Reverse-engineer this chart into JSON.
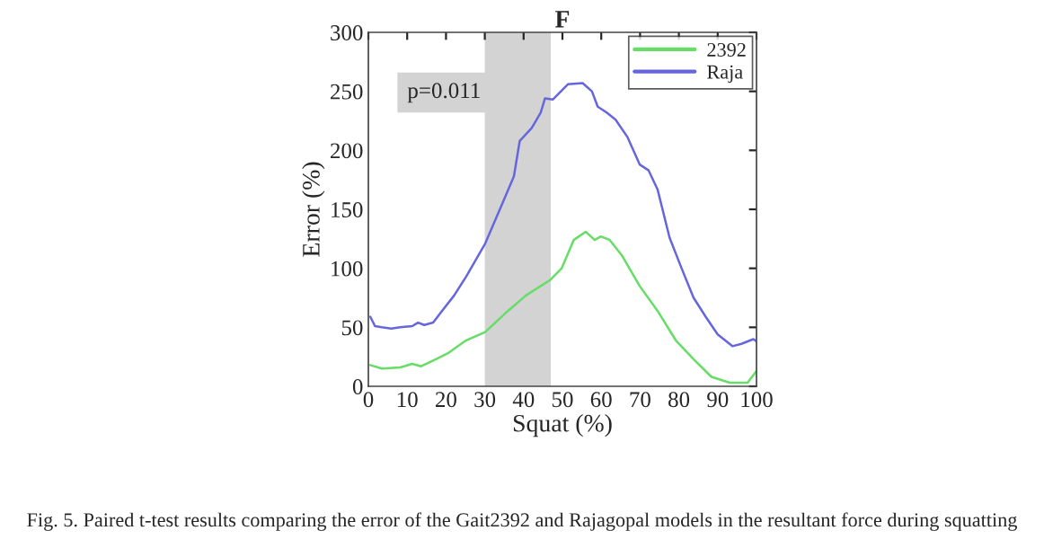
{
  "chart_data": {
    "type": "line",
    "title": "F",
    "xlabel": "Squat (%)",
    "ylabel": "Error (%)",
    "xlim": [
      0,
      100
    ],
    "ylim": [
      0,
      300
    ],
    "xticks": [
      0,
      10,
      20,
      30,
      40,
      50,
      60,
      70,
      80,
      90,
      100
    ],
    "yticks": [
      0,
      50,
      100,
      150,
      200,
      250,
      300
    ],
    "grid": false,
    "legend": "top right",
    "bands": [
      {
        "axis": "x",
        "from": 30,
        "to": 47,
        "label": "p=0.011",
        "color": "#d3d3d3"
      }
    ],
    "annotations": [
      "Fig. 5. Paired t-test results comparing the error of the Gait2392 and Rajagopal models in the resultant force during squatting"
    ],
    "series": [
      {
        "name": "2392",
        "color": "#66dd66",
        "x": [
          0.5,
          3.5,
          8.2,
          11.3,
          13.6,
          17.4,
          20.5,
          25.2,
          30.1,
          36,
          40.6,
          46.8,
          49.8,
          52.9,
          56,
          58.3,
          59.9,
          62.2,
          65.3,
          69.9,
          74.5,
          79.2,
          83.8,
          88.4,
          93.1,
          97.7,
          100
        ],
        "values": [
          18,
          15,
          16,
          19,
          17,
          23,
          28,
          39,
          46,
          64,
          77,
          90,
          100,
          124,
          131,
          124,
          127,
          124,
          111,
          85,
          64,
          39,
          23,
          8,
          3,
          3,
          13
        ]
      },
      {
        "name": "Raja",
        "color": "#6666dd",
        "x": [
          0.5,
          1.7,
          3.5,
          5.9,
          8.2,
          11.3,
          12.8,
          14.4,
          16.7,
          19.0,
          22.1,
          25.2,
          30.1,
          34.4,
          37.5,
          39.0,
          42.1,
          44.4,
          45.5,
          47.5,
          51.4,
          55.2,
          57.6,
          59.1,
          61.4,
          63.7,
          66.8,
          69.9,
          72.2,
          74.5,
          77.6,
          80.7,
          83.8,
          86.9,
          90.0,
          93.8,
          96.1,
          99.2,
          100
        ],
        "values": [
          59,
          51,
          50,
          49,
          50,
          51,
          54,
          52,
          54,
          64,
          77,
          93,
          121,
          154,
          178,
          208,
          219,
          232,
          244,
          243,
          256,
          257,
          250,
          237,
          232,
          226,
          211,
          188,
          183,
          167,
          126,
          100,
          75,
          59,
          44,
          34,
          36,
          40,
          38
        ]
      }
    ]
  }
}
